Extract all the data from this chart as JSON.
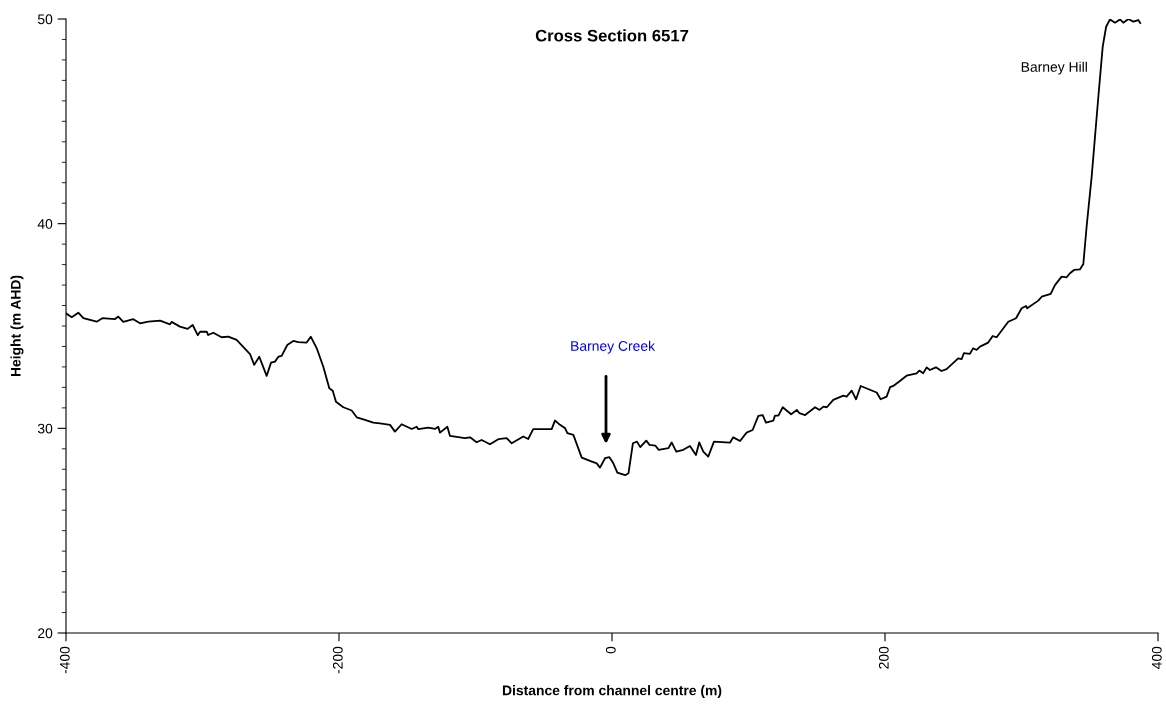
{
  "chart_data": {
    "type": "line",
    "title": "Cross Section 6517",
    "xlabel": "Distance from channel centre (m)",
    "ylabel": "Height (m AHD)",
    "x": [
      -400,
      -395.8,
      -391,
      -387.3,
      -377.5,
      -373.4,
      -364.1,
      -361.7,
      -358,
      -350.7,
      -345.8,
      -339.7,
      -331.1,
      -323.8,
      -322.6,
      -316.5,
      -310.9,
      -307.2,
      -303.5,
      -301.8,
      -296.9,
      -295.8,
      -292.1,
      -286,
      -281.1,
      -275,
      -265.2,
      -262.1,
      -258.4,
      -253,
      -249.8,
      -246.9,
      -244.4,
      -242,
      -237.9,
      -233.5,
      -229.8,
      -223.7,
      -220.7,
      -216.3,
      -211.5,
      -207.1,
      -204.6,
      -202.2,
      -196.8,
      -190.7,
      -187,
      -181,
      -174.9,
      -170,
      -162.6,
      -159,
      -154.1,
      -146.7,
      -143.1,
      -141.9,
      -134.6,
      -129.7,
      -127.3,
      -126,
      -120.6,
      -118.7,
      -107.7,
      -104,
      -99.2,
      -95.5,
      -89.4,
      -83.3,
      -77.2,
      -73.5,
      -65,
      -61.4,
      -57.7,
      -44.2,
      -41.8,
      -38.1,
      -34.4,
      -32.7,
      -28.3,
      -22.2,
      -16.1,
      -11.2,
      -8.8,
      -5.1,
      -1.9,
      1,
      3.9,
      9.6,
      12.1,
      15.3,
      18.3,
      20.7,
      25.1,
      27.5,
      31.7,
      34.1,
      41.3,
      43.7,
      47.1,
      52.2,
      57.1,
      61.5,
      63.9,
      66.9,
      70.5,
      74.7,
      86.4,
      88.8,
      93.8,
      98.6,
      103,
      107.2,
      110.4,
      112.8,
      118.2,
      119.4,
      121.9,
      125.1,
      131.2,
      135.4,
      137.3,
      141.5,
      148.8,
      152,
      154.9,
      157.4,
      162.1,
      169.5,
      171.9,
      175.6,
      178.8,
      182.2,
      193.9,
      196.8,
      201.2,
      203.7,
      206.1,
      210.9,
      215.8,
      223.2,
      225.1,
      228,
      230.5,
      232.9,
      237.3,
      241.4,
      245.1,
      253.6,
      256.1,
      257.8,
      262.2,
      264.6,
      267.1,
      269.6,
      275.6,
      278.9,
      281.8,
      290.3,
      296,
      300.1,
      303.3,
      304.2,
      312.3,
      314.8,
      321.4,
      324.5,
      329.4,
      333.1,
      335.5,
      338.5,
      342.9,
      345.3,
      347.7,
      351.4,
      356.3,
      359.5,
      362,
      364.8,
      368.5,
      372.2,
      374.6,
      378.3,
      381.9,
      385.6,
      387
    ],
    "series": [
      {
        "color": "#000000",
        "values": [
          35.62,
          35.43,
          35.65,
          35.38,
          35.21,
          35.38,
          35.34,
          35.46,
          35.2,
          35.33,
          35.13,
          35.21,
          35.26,
          35.08,
          35.2,
          34.97,
          34.86,
          35.05,
          34.55,
          34.72,
          34.72,
          34.56,
          34.67,
          34.45,
          34.48,
          34.32,
          33.63,
          33.1,
          33.5,
          32.56,
          33.21,
          33.26,
          33.5,
          33.54,
          34.07,
          34.27,
          34.21,
          34.19,
          34.48,
          33.91,
          33.01,
          31.96,
          31.84,
          31.3,
          31.03,
          30.87,
          30.54,
          30.41,
          30.28,
          30.24,
          30.17,
          29.84,
          30.2,
          29.97,
          30.08,
          29.96,
          30.03,
          29.97,
          30.08,
          29.79,
          30.08,
          29.63,
          29.52,
          29.56,
          29.32,
          29.43,
          29.22,
          29.47,
          29.52,
          29.27,
          29.6,
          29.48,
          29.96,
          29.96,
          30.38,
          30.17,
          30.01,
          29.76,
          29.68,
          28.57,
          28.41,
          28.29,
          28.08,
          28.54,
          28.59,
          28.29,
          27.84,
          27.71,
          27.81,
          29.27,
          29.35,
          29.08,
          29.4,
          29.19,
          29.16,
          28.95,
          29.03,
          29.31,
          28.86,
          28.95,
          29.14,
          28.7,
          29.31,
          28.86,
          28.62,
          29.35,
          29.3,
          29.56,
          29.38,
          29.79,
          29.92,
          30.61,
          30.65,
          30.28,
          30.38,
          30.62,
          30.62,
          31.03,
          30.69,
          30.9,
          30.74,
          30.65,
          31.03,
          30.9,
          31.06,
          31.03,
          31.39,
          31.6,
          31.55,
          31.84,
          31.42,
          32.07,
          31.75,
          31.42,
          31.55,
          32.01,
          32.07,
          32.31,
          32.57,
          32.69,
          32.82,
          32.69,
          32.98,
          32.85,
          32.98,
          32.8,
          32.89,
          33.42,
          33.38,
          33.67,
          33.64,
          33.91,
          33.83,
          33.99,
          34.19,
          34.51,
          34.45,
          35.21,
          35.38,
          35.87,
          35.98,
          35.87,
          36.24,
          36.43,
          36.57,
          37.0,
          37.41,
          37.38,
          37.58,
          37.74,
          37.77,
          38.03,
          39.85,
          42.3,
          46.2,
          48.65,
          49.62,
          49.98,
          49.82,
          49.98,
          49.82,
          50.0,
          49.87,
          49.95,
          49.8
        ]
      }
    ],
    "xlim": [
      -400,
      400
    ],
    "xticks": [
      -400,
      -200,
      0,
      200,
      400
    ],
    "ylim": [
      20,
      50
    ],
    "yticks": [
      20,
      {
        "value": 21,
        "label": null
      },
      {
        "value": 22,
        "label": null
      },
      {
        "value": 23,
        "label": null
      },
      {
        "value": 24,
        "label": null
      },
      {
        "value": 25,
        "label": null
      },
      {
        "value": 26,
        "label": null
      },
      {
        "value": 27,
        "label": null
      },
      {
        "value": 28,
        "label": null
      },
      {
        "value": 29,
        "label": null
      },
      30,
      {
        "value": 31,
        "label": null
      },
      {
        "value": 32,
        "label": null
      },
      {
        "value": 33,
        "label": null
      },
      {
        "value": 34,
        "label": null
      },
      {
        "value": 35,
        "label": null
      },
      {
        "value": 36,
        "label": null
      },
      {
        "value": 37,
        "label": null
      },
      {
        "value": 38,
        "label": null
      },
      {
        "value": 39,
        "label": null
      },
      40,
      {
        "value": 41,
        "label": null
      },
      {
        "value": 42,
        "label": null
      },
      {
        "value": 43,
        "label": null
      },
      {
        "value": 44,
        "label": null
      },
      {
        "value": 45,
        "label": null
      },
      {
        "value": 46,
        "label": null
      },
      {
        "value": 47,
        "label": null
      },
      {
        "value": 48,
        "label": null
      },
      {
        "value": 49,
        "label": null
      },
      50
    ],
    "annotations": [
      "Barney Creek",
      "Barney Hill"
    ],
    "grid": false,
    "legend": false,
    "marker": "none",
    "line_style": "solid"
  }
}
